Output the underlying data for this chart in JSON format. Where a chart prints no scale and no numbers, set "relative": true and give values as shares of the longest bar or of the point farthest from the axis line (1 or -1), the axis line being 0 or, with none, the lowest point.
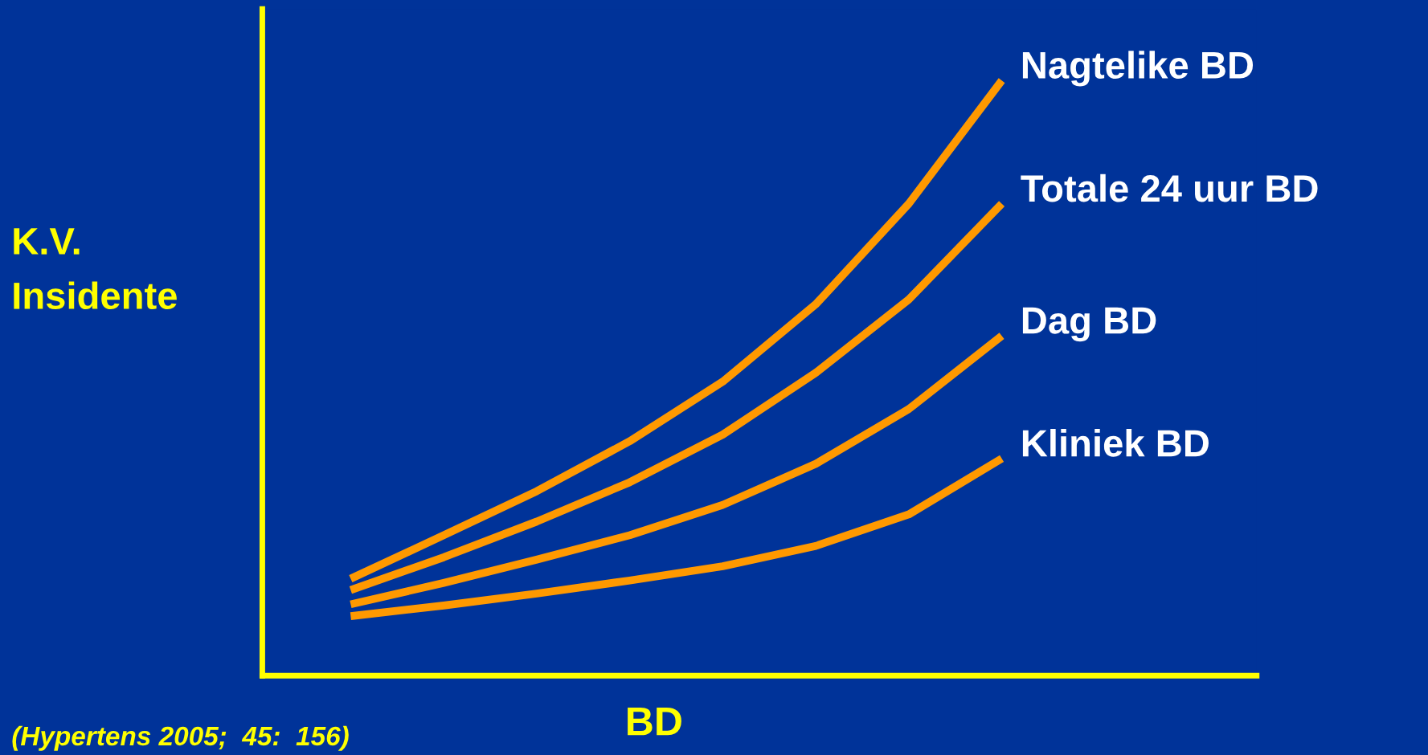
{
  "chart_data": {
    "type": "line",
    "relative": true,
    "ylabel": "K.V.\nInsidente",
    "xlabel": "BD",
    "categories": [
      null,
      null,
      null,
      null,
      null,
      null,
      null,
      null
    ],
    "series": [
      {
        "name": "Nagtelike BD",
        "color": "#ff9900",
        "values": [
          0.163,
          0.236,
          0.31,
          0.394,
          0.494,
          0.624,
          0.793,
          1.0
        ]
      },
      {
        "name": "Totale 24 uur BD",
        "color": "#ff9900",
        "values": [
          0.144,
          0.199,
          0.259,
          0.325,
          0.405,
          0.509,
          0.632,
          0.793
        ]
      },
      {
        "name": "Dag BD",
        "color": "#ff9900",
        "values": [
          0.12,
          0.156,
          0.195,
          0.236,
          0.287,
          0.356,
          0.448,
          0.571
        ]
      },
      {
        "name": "Kliniek BD",
        "color": "#ff9900",
        "values": [
          0.1,
          0.118,
          0.138,
          0.16,
          0.184,
          0.218,
          0.271,
          0.365
        ]
      }
    ],
    "annotations": [
      "(Hypertens 2005;  45:  156)"
    ],
    "legend": false,
    "marker": "none",
    "line_style": "solid"
  }
}
